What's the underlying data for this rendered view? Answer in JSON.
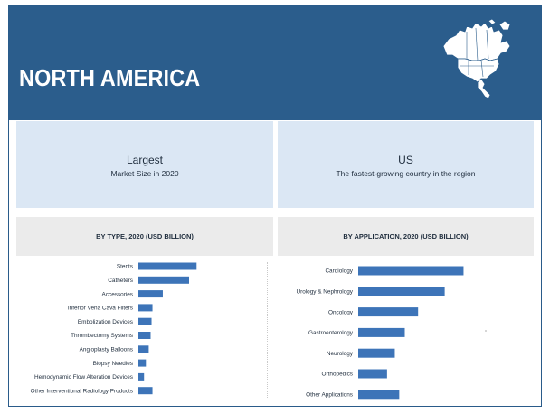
{
  "header": {
    "title": "NORTH AMERICA"
  },
  "panels": {
    "left": {
      "big": "Largest",
      "small": "Market Size in 2020"
    },
    "right": {
      "big": "US",
      "small": "The fastest-growing country in the region"
    }
  },
  "colors": {
    "header": "#2b5d8c",
    "bar": "#3d74b8",
    "panel_blue": "#dbe7f4",
    "panel_grey": "#ebebeb"
  },
  "icons": {
    "map": "north-america-map-icon"
  },
  "chart_data": [
    {
      "type": "bar",
      "orientation": "horizontal",
      "title": "BY TYPE, 2020 (USD BILLION)",
      "categories": [
        "Stents",
        "Catheters",
        "Accessories",
        "Inferior Vena Cava Filters",
        "Embolization Devices",
        "Thrombectomy Systems",
        "Angioplasty Balloons",
        "Biopsy Needles",
        "Hemodynamic Flow Alteration Devices",
        "Other Interventional Radiology Products"
      ],
      "values": [
        6.2,
        5.4,
        2.6,
        1.5,
        1.4,
        1.3,
        1.1,
        0.8,
        0.6,
        1.5
      ],
      "xlim": [
        0,
        13.5
      ],
      "grid": false,
      "legend": "none"
    },
    {
      "type": "bar",
      "orientation": "horizontal",
      "title": "BY APPLICATION, 2020 (USD BILLION)",
      "categories": [
        "Cardiology",
        "Urology & Nephrology",
        "Oncology",
        "Gastroenterology",
        "Neurology",
        "Orthopedics",
        "Other Applications"
      ],
      "values": [
        9.5,
        7.8,
        5.4,
        4.2,
        3.3,
        2.6,
        3.7
      ],
      "xlim": [
        0,
        15.5
      ],
      "grid": false,
      "legend": "none"
    }
  ]
}
